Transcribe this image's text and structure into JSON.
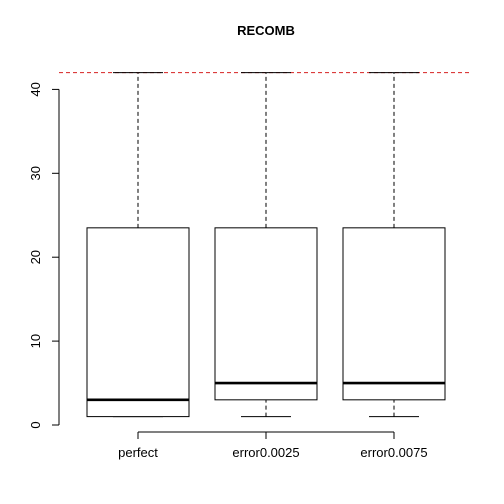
{
  "chart_data": {
    "type": "boxplot",
    "title": "RECOMB",
    "xlabel": "",
    "ylabel": "",
    "categories": [
      "perfect",
      "error0.0025",
      "error0.0075"
    ],
    "boxes": [
      {
        "min": 1,
        "q1": 1,
        "median": 3,
        "q3": 23.5,
        "max": 42
      },
      {
        "min": 1,
        "q1": 3,
        "median": 5,
        "q3": 23.5,
        "max": 42
      },
      {
        "min": 1,
        "q1": 3,
        "median": 5,
        "q3": 23.5,
        "max": 42
      }
    ],
    "reference_line": {
      "y": 42,
      "color": "#d62020",
      "style": "dashed"
    },
    "yticks": [
      0,
      10,
      20,
      30,
      40
    ],
    "ylim": [
      0,
      42
    ],
    "grid": false,
    "legend": "none"
  }
}
